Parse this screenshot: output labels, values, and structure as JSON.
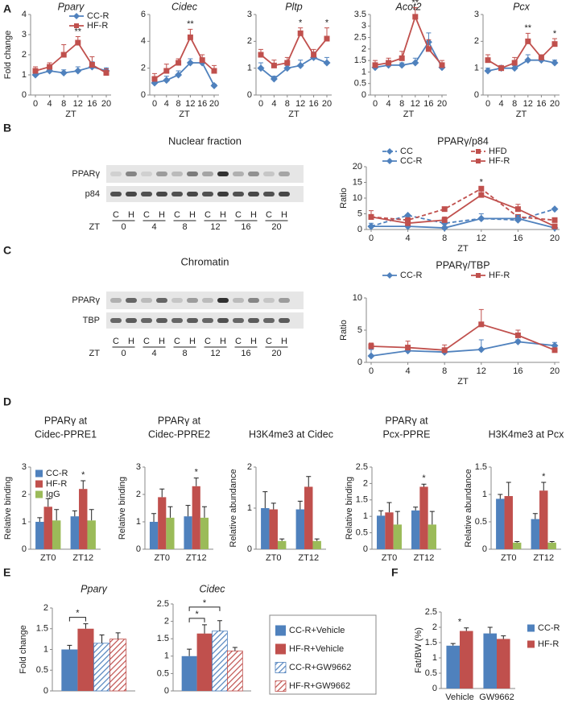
{
  "panel_labels": [
    "A",
    "B",
    "C",
    "D",
    "E",
    "F"
  ],
  "blots": [
    {
      "title": "Nuclear fraction",
      "rows": [
        "PPARγ",
        "p84"
      ],
      "lanes": [
        "C",
        "H",
        "C",
        "H",
        "C",
        "H",
        "C",
        "H",
        "C",
        "H",
        "C",
        "H"
      ],
      "zt_label": "ZT",
      "zt": [
        0,
        4,
        8,
        12,
        16,
        20
      ]
    },
    {
      "title": "Chromatin",
      "rows": [
        "PPARγ",
        "TBP"
      ],
      "lanes": [
        "C",
        "H",
        "C",
        "H",
        "C",
        "H",
        "C",
        "H",
        "C",
        "H",
        "C",
        "H"
      ],
      "zt_label": "ZT",
      "zt": [
        0,
        4,
        8,
        12,
        16,
        20
      ]
    }
  ],
  "chart_data": [
    {
      "type": "line",
      "title": "Pparγ",
      "ylabel": "Fold change",
      "xlabel": "ZT",
      "x": [
        0,
        4,
        8,
        12,
        16,
        20
      ],
      "xlim": [
        0,
        20
      ],
      "xticks": [
        0,
        4,
        8,
        12,
        16,
        20
      ],
      "ylim": [
        0,
        4
      ],
      "yticks": [
        0,
        1,
        2,
        3,
        4
      ],
      "legend": "upper right",
      "series": [
        {
          "name": "CC-R",
          "color": "#4f81bd",
          "marker": "diamond",
          "values": [
            1.0,
            1.2,
            1.1,
            1.2,
            1.4,
            1.2
          ],
          "errors": [
            0.2,
            0.15,
            0.15,
            0.2,
            0.25,
            0.15
          ]
        },
        {
          "name": "HF-R",
          "color": "#c0504d",
          "marker": "square",
          "values": [
            1.2,
            1.4,
            2.0,
            2.6,
            1.5,
            1.1
          ],
          "errors": [
            0.2,
            0.2,
            0.5,
            0.3,
            0.4,
            0.2
          ]
        }
      ],
      "annotations": [
        {
          "x": 12,
          "text": "**"
        }
      ]
    },
    {
      "type": "line",
      "title": "Cidec",
      "xlabel": "ZT",
      "x": [
        0,
        4,
        8,
        12,
        16,
        20
      ],
      "xlim": [
        0,
        20
      ],
      "xticks": [
        0,
        4,
        8,
        12,
        16,
        20
      ],
      "ylim": [
        0,
        6
      ],
      "yticks": [
        0,
        2,
        4,
        6
      ],
      "series": [
        {
          "color": "#4f81bd",
          "marker": "diamond",
          "values": [
            0.9,
            1.1,
            1.5,
            2.4,
            2.4,
            0.7
          ],
          "errors": [
            0.3,
            0.3,
            0.3,
            0.3,
            0.3,
            0.1
          ]
        },
        {
          "color": "#c0504d",
          "marker": "square",
          "values": [
            1.2,
            1.8,
            2.4,
            4.3,
            2.6,
            1.8
          ],
          "errors": [
            0.4,
            0.5,
            0.3,
            0.6,
            0.4,
            0.4
          ]
        }
      ],
      "annotations": [
        {
          "x": 12,
          "text": "**"
        }
      ]
    },
    {
      "type": "line",
      "title": "Pltp",
      "xlabel": "ZT",
      "x": [
        0,
        4,
        8,
        12,
        16,
        20
      ],
      "xlim": [
        0,
        20
      ],
      "xticks": [
        0,
        4,
        8,
        12,
        16,
        20
      ],
      "ylim": [
        0,
        3
      ],
      "yticks": [
        0,
        1,
        2,
        3
      ],
      "series": [
        {
          "color": "#4f81bd",
          "marker": "diamond",
          "values": [
            1.0,
            0.6,
            1.0,
            1.1,
            1.4,
            1.2
          ],
          "errors": [
            0.2,
            0.1,
            0.1,
            0.2,
            0.2,
            0.2
          ]
        },
        {
          "color": "#c0504d",
          "marker": "square",
          "values": [
            1.5,
            1.1,
            1.2,
            2.3,
            1.5,
            2.1
          ],
          "errors": [
            0.2,
            0.2,
            0.2,
            0.2,
            0.2,
            0.4
          ]
        }
      ],
      "annotations": [
        {
          "x": 12,
          "text": "*"
        },
        {
          "x": 20,
          "text": "*"
        }
      ]
    },
    {
      "type": "line",
      "title": "Acot2",
      "xlabel": "ZT",
      "x": [
        0,
        4,
        8,
        12,
        16,
        20
      ],
      "xlim": [
        0,
        20
      ],
      "xticks": [
        0,
        4,
        8,
        12,
        16,
        20
      ],
      "ylim": [
        0,
        3.5
      ],
      "yticks": [
        0,
        0.5,
        1,
        1.5,
        2,
        2.5,
        3,
        3.5
      ],
      "series": [
        {
          "color": "#4f81bd",
          "marker": "diamond",
          "values": [
            1.2,
            1.3,
            1.3,
            1.4,
            2.3,
            1.2
          ],
          "errors": [
            0.2,
            0.2,
            0.1,
            0.2,
            0.4,
            0.2
          ]
        },
        {
          "color": "#c0504d",
          "marker": "square",
          "values": [
            1.3,
            1.4,
            1.6,
            3.4,
            2.0,
            1.3
          ],
          "errors": [
            0.2,
            0.2,
            0.3,
            0.4,
            0.4,
            0.2
          ]
        }
      ],
      "annotations": [
        {
          "x": 12,
          "text": "**"
        }
      ]
    },
    {
      "type": "line",
      "title": "Pcx",
      "xlabel": "ZT",
      "x": [
        0,
        4,
        8,
        12,
        16,
        20
      ],
      "xlim": [
        0,
        20
      ],
      "xticks": [
        0,
        4,
        8,
        12,
        16,
        20
      ],
      "ylim": [
        0,
        3
      ],
      "yticks": [
        0,
        1,
        2,
        3
      ],
      "series": [
        {
          "color": "#4f81bd",
          "marker": "diamond",
          "values": [
            0.9,
            1.0,
            1.0,
            1.3,
            1.3,
            1.2
          ],
          "errors": [
            0.1,
            0.1,
            0.1,
            0.2,
            0.1,
            0.1
          ]
        },
        {
          "color": "#c0504d",
          "marker": "square",
          "values": [
            1.3,
            1.0,
            1.2,
            2.0,
            1.4,
            1.9
          ],
          "errors": [
            0.2,
            0.1,
            0.2,
            0.3,
            0.1,
            0.2
          ]
        }
      ],
      "annotations": [
        {
          "x": 12,
          "text": "**"
        },
        {
          "x": 20,
          "text": "*"
        }
      ]
    },
    {
      "type": "line",
      "title": "PPARγ/p84",
      "ylabel": "Ratio",
      "xlabel": "ZT",
      "x": [
        0,
        4,
        8,
        12,
        16,
        20
      ],
      "xlim": [
        0,
        20
      ],
      "xticks": [
        0,
        4,
        8,
        12,
        16,
        20
      ],
      "ylim": [
        0,
        20
      ],
      "yticks": [
        0,
        5,
        10,
        15,
        20
      ],
      "legend": "top",
      "series": [
        {
          "name": "CC",
          "color": "#4f81bd",
          "marker": "diamond",
          "dash": true,
          "values": [
            1,
            4.5,
            2,
            3.5,
            3,
            6.5
          ]
        },
        {
          "name": "HFD",
          "color": "#c0504d",
          "marker": "square",
          "dash": true,
          "values": [
            4,
            3,
            6.5,
            13,
            4,
            3
          ]
        },
        {
          "name": "CC-R",
          "color": "#4f81bd",
          "marker": "diamond",
          "values": [
            1,
            1,
            0.5,
            3.5,
            3.5,
            0.5
          ],
          "errors": [
            1,
            0.5,
            0.5,
            1.5,
            1,
            0.3
          ]
        },
        {
          "name": "HF-R",
          "color": "#c0504d",
          "marker": "square",
          "values": [
            4,
            2,
            3,
            11,
            6.5,
            1
          ],
          "errors": [
            2,
            1,
            1,
            2.5,
            1.5,
            0.5
          ]
        }
      ],
      "annotations": [
        {
          "x": 12,
          "text": "*"
        }
      ]
    },
    {
      "type": "line",
      "title": "PPARγ/TBP",
      "ylabel": "Ratio",
      "xlabel": "ZT",
      "x": [
        0,
        4,
        8,
        12,
        16,
        20
      ],
      "xlim": [
        0,
        20
      ],
      "xticks": [
        0,
        4,
        8,
        12,
        16,
        20
      ],
      "ylim": [
        0,
        10
      ],
      "yticks": [
        0,
        5,
        10
      ],
      "legend": "top",
      "series": [
        {
          "name": "CC-R",
          "color": "#4f81bd",
          "marker": "diamond",
          "values": [
            1,
            1.8,
            1.6,
            2,
            3.2,
            2.6
          ],
          "errors": [
            1,
            0.5,
            0.5,
            1.5,
            0.3,
            0.5
          ]
        },
        {
          "name": "HF-R",
          "color": "#c0504d",
          "marker": "square",
          "values": [
            2.5,
            2.3,
            1.9,
            5.9,
            4.2,
            1.9
          ],
          "errors": [
            0.5,
            1,
            0.8,
            2.3,
            0.8,
            0.3
          ]
        }
      ]
    },
    {
      "type": "bar",
      "title": [
        "PPARγ at",
        "Cidec-PPRE1"
      ],
      "ylabel": "Relative binding",
      "categories": [
        "ZT0",
        "ZT12"
      ],
      "ylim": [
        0,
        3
      ],
      "yticks": [
        0,
        1,
        2,
        3
      ],
      "legend": "upper left",
      "series": [
        {
          "name": "CC-R",
          "color": "#4f81bd",
          "values": [
            1.0,
            1.2
          ],
          "errors": [
            0.15,
            0.2
          ]
        },
        {
          "name": "HF-R",
          "color": "#c0504d",
          "values": [
            1.55,
            2.2
          ],
          "errors": [
            0.3,
            0.3
          ]
        },
        {
          "name": "IgG",
          "color": "#9bbb59",
          "values": [
            1.05,
            1.05
          ],
          "errors": [
            0.4,
            0.4
          ]
        }
      ],
      "annotations": [
        {
          "category": "ZT12",
          "text": "*"
        }
      ]
    },
    {
      "type": "bar",
      "title": [
        "PPARγ at",
        "Cidec-PPRE2"
      ],
      "ylabel": "Relative binding",
      "categories": [
        "ZT0",
        "ZT12"
      ],
      "ylim": [
        0,
        3
      ],
      "yticks": [
        0,
        1,
        2,
        3
      ],
      "series": [
        {
          "color": "#4f81bd",
          "values": [
            1.0,
            1.2
          ],
          "errors": [
            0.3,
            0.4
          ]
        },
        {
          "color": "#c0504d",
          "values": [
            1.9,
            2.3
          ],
          "errors": [
            0.3,
            0.3
          ]
        },
        {
          "color": "#9bbb59",
          "values": [
            1.15,
            1.15
          ],
          "errors": [
            0.4,
            0.4
          ]
        }
      ],
      "annotations": [
        {
          "category": "ZT12",
          "text": "*"
        }
      ]
    },
    {
      "type": "bar",
      "title": [
        "H3K4me3 at Cidec"
      ],
      "ylabel": "Relative abundance",
      "categories": [
        "ZT0",
        "ZT12"
      ],
      "ylim": [
        0,
        2
      ],
      "yticks": [
        0,
        1,
        2
      ],
      "series": [
        {
          "color": "#4f81bd",
          "values": [
            1.0,
            0.97
          ],
          "errors": [
            0.4,
            0.2
          ]
        },
        {
          "color": "#c0504d",
          "values": [
            0.97,
            1.52
          ],
          "errors": [
            0.15,
            0.25
          ]
        },
        {
          "color": "#9bbb59",
          "values": [
            0.2,
            0.2
          ],
          "errors": [
            0.05,
            0.05
          ]
        }
      ]
    },
    {
      "type": "bar",
      "title": [
        "PPARγ at",
        "Pcx-PPRE"
      ],
      "ylabel": "Relative binding",
      "categories": [
        "ZT0",
        "ZT12"
      ],
      "ylim": [
        0,
        2.5
      ],
      "yticks": [
        0,
        0.5,
        1,
        1.5,
        2,
        2.5
      ],
      "series": [
        {
          "color": "#4f81bd",
          "values": [
            1.02,
            1.18
          ],
          "errors": [
            0.15,
            0.1
          ]
        },
        {
          "color": "#c0504d",
          "values": [
            1.12,
            1.9
          ],
          "errors": [
            0.3,
            0.08
          ]
        },
        {
          "color": "#9bbb59",
          "values": [
            0.75,
            0.75
          ],
          "errors": [
            0.4,
            0.4
          ]
        }
      ],
      "annotations": [
        {
          "category": "ZT12",
          "text": "*"
        }
      ]
    },
    {
      "type": "bar",
      "title": [
        "H3K4me3 at Pcx"
      ],
      "ylabel": "Relative abundance",
      "categories": [
        "ZT0",
        "ZT12"
      ],
      "ylim": [
        0,
        1.5
      ],
      "yticks": [
        0,
        0.5,
        1,
        1.5
      ],
      "series": [
        {
          "color": "#4f81bd",
          "values": [
            0.92,
            0.55
          ],
          "errors": [
            0.08,
            0.1
          ]
        },
        {
          "color": "#c0504d",
          "values": [
            0.97,
            1.07
          ],
          "errors": [
            0.25,
            0.15
          ]
        },
        {
          "color": "#9bbb59",
          "values": [
            0.12,
            0.12
          ],
          "errors": [
            0.02,
            0.02
          ]
        }
      ],
      "annotations": [
        {
          "category": "ZT12",
          "text": "*"
        }
      ]
    },
    {
      "type": "bar",
      "title": [
        "Pparγ"
      ],
      "ylabel": "Fold change",
      "categories": [
        null
      ],
      "ylim": [
        0,
        2
      ],
      "yticks": [
        0,
        0.5,
        1,
        1.5,
        2
      ],
      "series": [
        {
          "color": "#4f81bd",
          "values": [
            1.0
          ],
          "errors": [
            0.1
          ]
        },
        {
          "color": "#c0504d",
          "values": [
            1.5
          ],
          "errors": [
            0.12
          ]
        },
        {
          "color": "#4f81bd",
          "hatch": true,
          "values": [
            1.15
          ],
          "errors": [
            0.2
          ]
        },
        {
          "color": "#c0504d",
          "hatch": true,
          "values": [
            1.25
          ],
          "errors": [
            0.15
          ]
        }
      ],
      "brackets": [
        {
          "between": [
            0,
            1
          ],
          "text": "*"
        }
      ]
    },
    {
      "type": "bar",
      "title": [
        "Cidec"
      ],
      "categories": [
        null
      ],
      "ylim": [
        0,
        2.5
      ],
      "yticks": [
        0,
        0.5,
        1,
        1.5,
        2,
        2.5
      ],
      "legend": "right",
      "legend_frame": true,
      "series": [
        {
          "name": "CC-R+Vehicle",
          "color": "#4f81bd",
          "values": [
            1.0
          ],
          "errors": [
            0.2
          ]
        },
        {
          "name": "HF-R+Vehicle",
          "color": "#c0504d",
          "values": [
            1.65
          ],
          "errors": [
            0.25
          ]
        },
        {
          "name": "CC-R+GW9662",
          "color": "#4f81bd",
          "hatch": true,
          "values": [
            1.72
          ],
          "errors": [
            0.3
          ]
        },
        {
          "name": "HF-R+GW9662",
          "color": "#c0504d",
          "hatch": true,
          "values": [
            1.15
          ],
          "errors": [
            0.1
          ]
        }
      ],
      "brackets": [
        {
          "between": [
            0,
            1
          ],
          "text": "*"
        },
        {
          "between": [
            0,
            2
          ],
          "text": "*"
        }
      ]
    },
    {
      "type": "bar",
      "ylabel": "Fat/BW (%)",
      "categories": [
        "Vehicle",
        "GW9662"
      ],
      "ylim": [
        0,
        2.5
      ],
      "yticks": [
        0,
        0.5,
        1,
        1.5,
        2,
        2.5
      ],
      "legend": "right",
      "series": [
        {
          "name": "CC-R",
          "color": "#4f81bd",
          "values": [
            1.4,
            1.8
          ],
          "errors": [
            0.07,
            0.2
          ]
        },
        {
          "name": "HF-R",
          "color": "#c0504d",
          "values": [
            1.88,
            1.62
          ],
          "errors": [
            0.1,
            0.1
          ]
        }
      ],
      "annotations": [
        {
          "category": "Vehicle",
          "text": "*"
        }
      ]
    }
  ]
}
